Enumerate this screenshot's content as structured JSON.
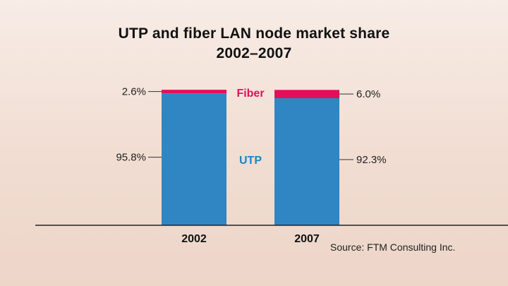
{
  "title_line1": "UTP and fiber LAN node market share",
  "title_line2": "2002–2007",
  "source": "Source: FTM Consulting Inc.",
  "colors": {
    "utp": "#2f86c3",
    "fiber": "#e2105a",
    "utp_label": "#1f82c6",
    "fiber_label": "#e2105a",
    "axis": "#333333"
  },
  "chart_data": {
    "type": "bar",
    "stacked": true,
    "categories": [
      "2002",
      "2007"
    ],
    "series": [
      {
        "name": "UTP",
        "values": [
          95.8,
          92.3
        ],
        "labels": [
          "95.8%",
          "92.3%"
        ]
      },
      {
        "name": "Fiber",
        "values": [
          2.6,
          6.0
        ],
        "labels": [
          "2.6%",
          "6.0%"
        ]
      }
    ],
    "title": "UTP and fiber LAN node market share 2002–2007",
    "ylim": [
      0,
      100
    ],
    "grid": false
  }
}
